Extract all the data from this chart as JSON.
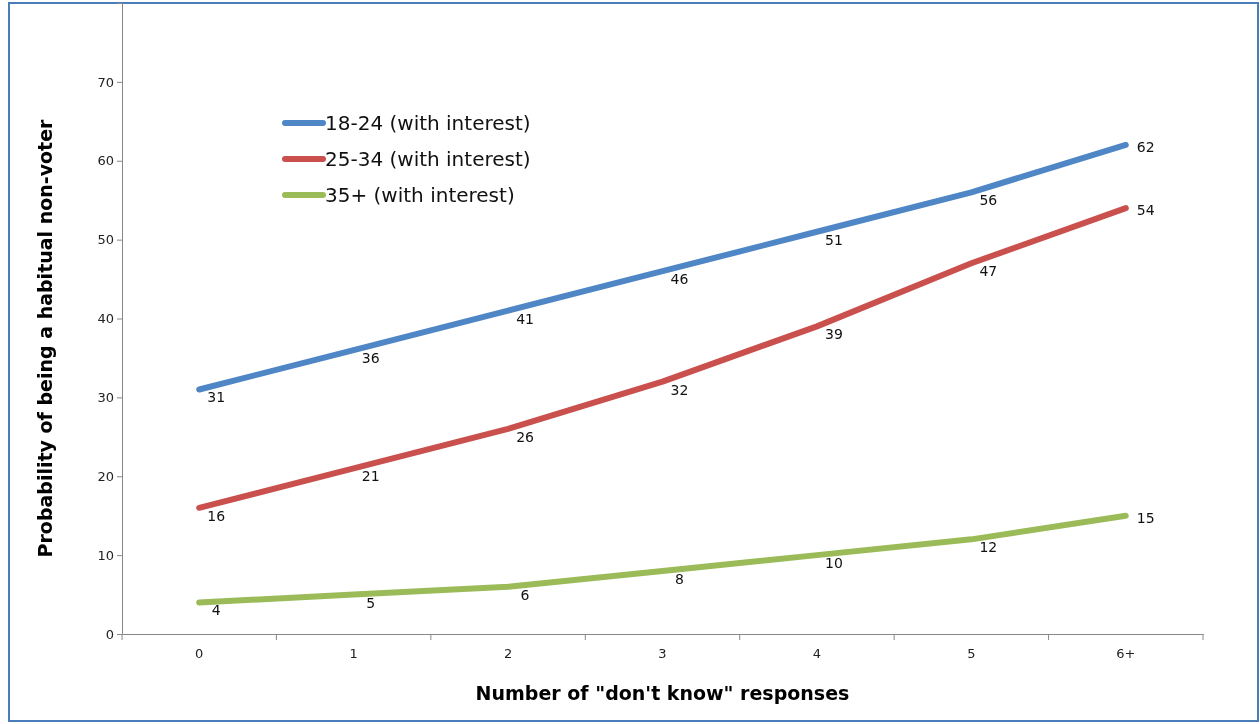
{
  "chart_data": {
    "type": "line",
    "xlabel": "Number of \"don't know\" responses",
    "ylabel": "Probability of being a habitual non-voter",
    "categories": [
      "0",
      "1",
      "2",
      "3",
      "4",
      "5",
      "6+"
    ],
    "series": [
      {
        "name": "18-24 (with interest)",
        "color": "#4f86c6",
        "values": [
          31,
          36,
          41,
          46,
          51,
          56,
          62
        ]
      },
      {
        "name": "25-34 (with interest)",
        "color": "#c9504d",
        "values": [
          16,
          21,
          26,
          32,
          39,
          47,
          54
        ]
      },
      {
        "name": "35+ (with interest)",
        "color": "#9bbb59",
        "values": [
          4,
          5,
          6,
          8,
          10,
          12,
          15
        ]
      }
    ],
    "ylim": [
      0,
      80
    ],
    "yticks": [
      0,
      10,
      20,
      30,
      40,
      50,
      60,
      70
    ],
    "data_labels": true,
    "legend": "top left",
    "grid": false,
    "marker": "none",
    "line_style": "solid"
  }
}
